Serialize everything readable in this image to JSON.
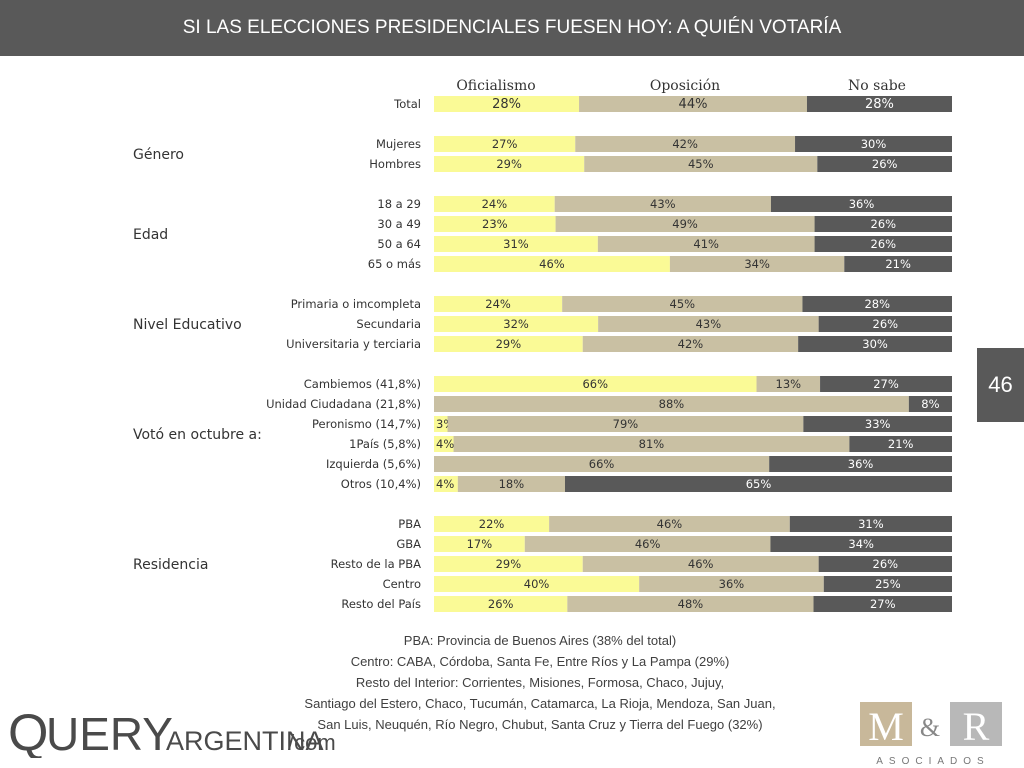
{
  "header": {
    "title": "SI LAS ELECCIONES PRESIDENCIALES FUESEN HOY: A QUIÉN VOTARÍA"
  },
  "page_number": "46",
  "colors": {
    "oficialismo": "#fafa96",
    "oposicion": "#c9c0a3",
    "no_sabe": "#595959",
    "header_bg": "#595959"
  },
  "chart_data": {
    "type": "bar",
    "stacked": true,
    "orientation": "horizontal",
    "columns": [
      "Oficialismo",
      "Oposición",
      "No sabe"
    ],
    "groups": [
      {
        "name": "",
        "rows": [
          {
            "label": "Total",
            "values": [
              28,
              44,
              28
            ]
          }
        ]
      },
      {
        "name": "Género",
        "rows": [
          {
            "label": "Mujeres",
            "values": [
              27,
              42,
              30
            ]
          },
          {
            "label": "Hombres",
            "values": [
              29,
              45,
              26
            ]
          }
        ]
      },
      {
        "name": "Edad",
        "rows": [
          {
            "label": "18 a 29",
            "values": [
              24,
              43,
              36
            ]
          },
          {
            "label": "30 a 49",
            "values": [
              23,
              49,
              26
            ]
          },
          {
            "label": "50 a 64",
            "values": [
              31,
              41,
              26
            ]
          },
          {
            "label": "65 o más",
            "values": [
              46,
              34,
              21
            ]
          }
        ]
      },
      {
        "name": "Nivel Educativo",
        "rows": [
          {
            "label": "Primaria o imcompleta",
            "values": [
              24,
              45,
              28
            ]
          },
          {
            "label": "Secundaria",
            "values": [
              32,
              43,
              26
            ]
          },
          {
            "label": "Universitaria y terciaria",
            "values": [
              29,
              42,
              30
            ]
          }
        ]
      },
      {
        "name": "Votó en octubre a:",
        "rows": [
          {
            "label": "Cambiemos (41,8%)",
            "values": [
              66,
              13,
              27
            ]
          },
          {
            "label": "Unidad Ciudadana (21,8%)",
            "values": [
              null,
              88,
              8
            ]
          },
          {
            "label": "Peronismo (14,7%)",
            "values": [
              3,
              79,
              33
            ]
          },
          {
            "label": "1País (5,8%)",
            "values": [
              4,
              81,
              21
            ]
          },
          {
            "label": "Izquierda (5,6%)",
            "values": [
              null,
              66,
              36
            ]
          },
          {
            "label": "Otros (10,4%)",
            "values": [
              4,
              18,
              65
            ]
          }
        ]
      },
      {
        "name": "Residencia",
        "rows": [
          {
            "label": "PBA",
            "values": [
              22,
              46,
              31
            ]
          },
          {
            "label": "GBA",
            "values": [
              17,
              46,
              34
            ]
          },
          {
            "label": "Resto de la PBA",
            "values": [
              29,
              46,
              26
            ]
          },
          {
            "label": "Centro",
            "values": [
              40,
              36,
              25
            ]
          },
          {
            "label": "Resto del País",
            "values": [
              26,
              48,
              27
            ]
          }
        ]
      }
    ]
  },
  "footnotes": [
    "PBA: Provincia de Buenos Aires (38% del total)",
    "Centro: CABA, Córdoba, Santa Fe, Entre Ríos y La Pampa (29%)",
    "Resto del Interior: Corrientes, Misiones, Formosa, Chaco, Jujuy,",
    "Santiago del Estero, Chaco, Tucumán, Catamarca, La Rioja, Mendoza, San Juan,",
    "San Luis, Neuquén, Río Negro, Chubut, Santa Cruz y Tierra del Fuego (32%)"
  ],
  "logos": {
    "query": {
      "q": "Q",
      "uery": "UERY",
      "argentina": "ARGENTINA",
      "com": "/com"
    },
    "mr": {
      "m": "M",
      "amp": "&",
      "r": "R",
      "sub": "ASOCIADOS"
    }
  }
}
